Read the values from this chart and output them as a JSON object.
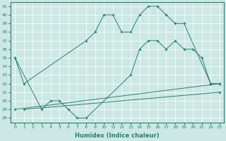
{
  "xlabel": "Humidex (Indice chaleur)",
  "xlim": [
    -0.5,
    23.5
  ],
  "ylim": [
    27.5,
    41.5
  ],
  "xticks": [
    0,
    1,
    2,
    3,
    4,
    5,
    6,
    7,
    8,
    9,
    10,
    11,
    12,
    13,
    14,
    15,
    16,
    17,
    18,
    19,
    20,
    21,
    22,
    23
  ],
  "yticks": [
    28,
    29,
    30,
    31,
    32,
    33,
    34,
    35,
    36,
    37,
    38,
    39,
    40,
    41
  ],
  "bg_color": "#cce8e4",
  "line_color": "#2e7d72",
  "series": [
    {
      "x": [
        0,
        1,
        8,
        9,
        10,
        11,
        12,
        13,
        14,
        15,
        16,
        17,
        18,
        19,
        22,
        23
      ],
      "y": [
        35,
        32,
        37,
        38,
        40,
        40,
        38,
        38,
        40,
        41,
        41,
        40,
        39,
        39,
        32,
        32
      ]
    },
    {
      "x": [
        0,
        3,
        4,
        5,
        6,
        7,
        8,
        13,
        14,
        15,
        16,
        17,
        18,
        19,
        20,
        21,
        22,
        23
      ],
      "y": [
        35,
        29,
        30,
        30,
        29,
        28,
        28,
        33,
        36,
        37,
        37,
        36,
        37,
        36,
        36,
        35,
        32,
        32
      ]
    },
    {
      "x": [
        0,
        23
      ],
      "y": [
        29,
        32
      ]
    },
    {
      "x": [
        1,
        23
      ],
      "y": [
        29,
        31
      ]
    }
  ]
}
